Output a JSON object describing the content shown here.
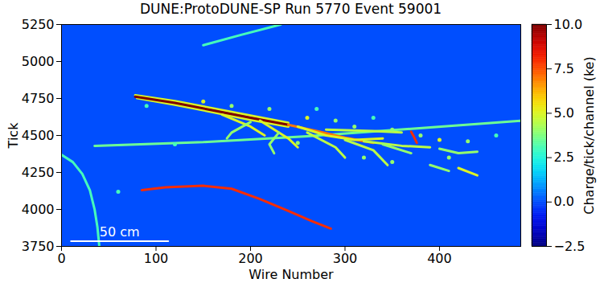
{
  "chart_data": {
    "type": "heatmap",
    "title": "DUNE:ProtoDUNE-SP Run 5770 Event 59001",
    "xlabel": "Wire Number",
    "ylabel": "Tick",
    "xlim": [
      0,
      486
    ],
    "ylim": [
      3750,
      5250
    ],
    "xticks": [
      0,
      100,
      200,
      300,
      400
    ],
    "yticks": [
      3750,
      4000,
      4250,
      4500,
      4750,
      5000,
      5250
    ],
    "background": 0,
    "colorbar": {
      "label": "Charge/tick/channel (ke)",
      "range": [
        -2.5,
        10
      ],
      "ticks": [
        {
          "value": -2.5,
          "label": "−2.5"
        },
        {
          "value": 0,
          "label": "0.0"
        },
        {
          "value": 2.5,
          "label": "2.5"
        },
        {
          "value": 5,
          "label": "5.0"
        },
        {
          "value": 7.5,
          "label": "7.5"
        },
        {
          "value": 10,
          "label": "10.0"
        }
      ]
    },
    "scale_bar": {
      "label": "50 cm",
      "wires": [
        10,
        113
      ],
      "tick": 3785
    },
    "tracks": [
      {
        "charge": 3,
        "points": [
          [
            150,
            5110
          ],
          [
            190,
            5180
          ],
          [
            232,
            5250
          ]
        ]
      },
      {
        "charge": 3.5,
        "points": [
          [
            35,
            4430
          ],
          [
            150,
            4455
          ],
          [
            260,
            4495
          ],
          [
            370,
            4545
          ],
          [
            486,
            4600
          ]
        ]
      },
      {
        "charge": 3,
        "points": [
          [
            0,
            4370
          ],
          [
            12,
            4320
          ],
          [
            22,
            4240
          ],
          [
            30,
            4130
          ],
          [
            35,
            4000
          ],
          [
            38,
            3880
          ],
          [
            40,
            3750
          ]
        ]
      },
      {
        "charge": 8,
        "points": [
          [
            85,
            4130
          ],
          [
            110,
            4150
          ],
          [
            150,
            4160
          ],
          [
            180,
            4140
          ],
          [
            210,
            4070
          ],
          [
            240,
            3990
          ],
          [
            265,
            3920
          ],
          [
            285,
            3870
          ]
        ]
      },
      {
        "charge": 5,
        "points": [
          [
            78,
            4772
          ],
          [
            120,
            4732
          ],
          [
            160,
            4684
          ],
          [
            200,
            4634
          ],
          [
            240,
            4586
          ]
        ]
      },
      {
        "charge": 5,
        "points": [
          [
            80,
            4752
          ],
          [
            120,
            4708
          ],
          [
            160,
            4658
          ],
          [
            200,
            4606
          ],
          [
            240,
            4560
          ]
        ]
      },
      {
        "charge": 10,
        "points": [
          [
            78,
            4762
          ],
          [
            120,
            4720
          ],
          [
            160,
            4670
          ],
          [
            200,
            4620
          ],
          [
            240,
            4572
          ]
        ]
      },
      {
        "charge": 7,
        "points": [
          [
            240,
            4572
          ],
          [
            270,
            4530
          ],
          [
            300,
            4485
          ],
          [
            330,
            4450
          ]
        ]
      },
      {
        "charge": 8,
        "points": [
          [
            370,
            4525
          ],
          [
            373,
            4490
          ],
          [
            376,
            4450
          ]
        ]
      },
      {
        "charge": 5,
        "points": [
          [
            170,
            4640
          ],
          [
            200,
            4560
          ],
          [
            215,
            4500
          ]
        ]
      },
      {
        "charge": 5,
        "points": [
          [
            210,
            4600
          ],
          [
            240,
            4480
          ],
          [
            250,
            4420
          ]
        ]
      },
      {
        "charge": 5,
        "points": [
          [
            250,
            4560
          ],
          [
            280,
            4500
          ],
          [
            310,
            4470
          ],
          [
            340,
            4480
          ]
        ]
      },
      {
        "charge": 4.5,
        "points": [
          [
            260,
            4520
          ],
          [
            290,
            4420
          ],
          [
            300,
            4350
          ]
        ]
      },
      {
        "charge": 4.5,
        "points": [
          [
            300,
            4470
          ],
          [
            330,
            4400
          ],
          [
            345,
            4300
          ]
        ]
      },
      {
        "charge": 4,
        "points": [
          [
            200,
            4590
          ],
          [
            180,
            4520
          ],
          [
            175,
            4480
          ]
        ]
      },
      {
        "charge": 4.5,
        "points": [
          [
            280,
            4540
          ],
          [
            330,
            4530
          ],
          [
            360,
            4520
          ]
        ]
      },
      {
        "charge": 4.5,
        "points": [
          [
            320,
            4460
          ],
          [
            360,
            4430
          ],
          [
            390,
            4420
          ]
        ]
      },
      {
        "charge": 4,
        "points": [
          [
            230,
            4520
          ],
          [
            220,
            4440
          ],
          [
            225,
            4380
          ]
        ]
      },
      {
        "charge": 4,
        "points": [
          [
            340,
            4440
          ],
          [
            370,
            4380
          ]
        ]
      },
      {
        "charge": 4,
        "points": [
          [
            390,
            4300
          ],
          [
            410,
            4260
          ]
        ]
      },
      {
        "charge": 4,
        "points": [
          [
            400,
            4410
          ],
          [
            420,
            4380
          ],
          [
            440,
            4390
          ]
        ]
      },
      {
        "charge": 5,
        "points": [
          [
            420,
            4280
          ],
          [
            440,
            4230
          ]
        ]
      }
    ],
    "deposits": [
      [
        180,
        4700,
        4
      ],
      [
        220,
        4680,
        4
      ],
      [
        260,
        4620,
        5
      ],
      [
        290,
        4600,
        4
      ],
      [
        310,
        4560,
        4
      ],
      [
        350,
        4540,
        4
      ],
      [
        380,
        4500,
        4
      ],
      [
        400,
        4470,
        5
      ],
      [
        330,
        4620,
        3
      ],
      [
        150,
        4730,
        5
      ],
      [
        270,
        4680,
        3
      ],
      [
        320,
        4350,
        4
      ],
      [
        350,
        4320,
        4
      ],
      [
        430,
        4460,
        4
      ],
      [
        460,
        4500,
        3
      ],
      [
        410,
        4350,
        4
      ],
      [
        250,
        4450,
        4
      ],
      [
        120,
        4440,
        3
      ],
      [
        60,
        4120,
        3
      ],
      [
        90,
        4700,
        3
      ]
    ]
  }
}
